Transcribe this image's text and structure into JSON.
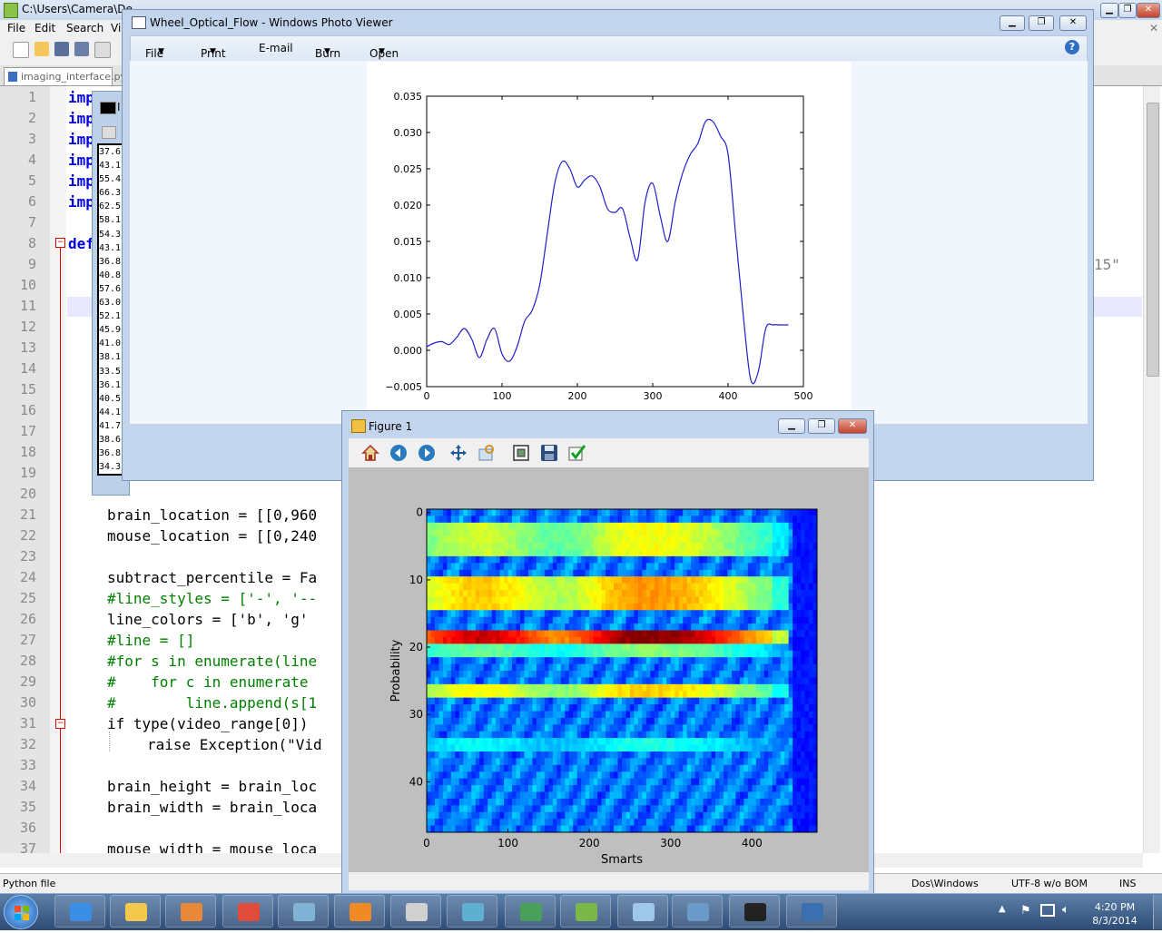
{
  "notepad": {
    "title": "C:\\Users\\Camera\\De",
    "menu": [
      "File",
      "Edit",
      "Search",
      "Vi"
    ],
    "tab_label": "imaging_interface.py",
    "status_filetype": "Python file",
    "status_eol": "Dos\\Windows",
    "status_encoding": "UTF-8 w/o BOM",
    "status_mode": "INS",
    "right_fragment": "15\"",
    "line_numbers": [
      "1",
      "2",
      "3",
      "4",
      "5",
      "6",
      "7",
      "8",
      "9",
      "10",
      "11",
      "12",
      "13",
      "14",
      "15",
      "16",
      "17",
      "18",
      "19",
      "20",
      "21",
      "22",
      "23",
      "24",
      "25",
      "26",
      "27",
      "28",
      "29",
      "30",
      "31",
      "32",
      "33",
      "34",
      "35",
      "36",
      "37"
    ],
    "code_first": [
      "imp",
      "imp",
      "imp",
      "imp",
      "imp",
      "imp",
      "",
      "def"
    ],
    "code_l21": "brain_location = [[0,960",
    "code_l22": "mouse_location = [[0,240",
    "code_l24": "subtract_percentile = Fa",
    "code_l25": "#line_styles = ['-', '--",
    "code_l26": "line_colors = ['b', 'g'",
    "code_l27": "#line = []",
    "code_l28": "#for s in enumerate(line",
    "code_l29": "#    for c in enumerate",
    "code_l30": "#        line.append(s[1",
    "code_l31": "if type(video_range[0])",
    "code_l32": "raise Exception(\"Vid",
    "code_l34": "brain_height = brain_loc",
    "code_l35": "brain_width = brain_loca",
    "code_l37": "mouse_width = mouse_loca"
  },
  "cmd": {
    "title_fragment": "I",
    "lines": [
      "37.6",
      "43.1",
      "55.4",
      "66.3",
      "62.5",
      "58.1",
      "54.3",
      "43.1",
      "36.8",
      "40.8",
      "57.6",
      "63.0",
      "52.1",
      "45.9",
      "41.0",
      "38.1",
      "33.5",
      "36.1",
      "40.5",
      "44.1",
      "41.7",
      "38.6",
      "36.8",
      "34.3"
    ]
  },
  "photo_viewer": {
    "title": "Wheel_Optical_Flow - Windows Photo Viewer",
    "menu": [
      "File",
      "Print",
      "E-mail",
      "Burn",
      "Open"
    ],
    "help_icon": "help-icon"
  },
  "figure": {
    "title": "Figure 1",
    "toolbar_icons": [
      "home-icon",
      "back-icon",
      "forward-icon",
      "pan-icon",
      "zoom-icon",
      "subplots-icon",
      "save-icon",
      "check-icon"
    ]
  },
  "chart_data": [
    {
      "type": "line",
      "title": "",
      "xlabel": "",
      "ylabel": "",
      "xlim": [
        0,
        500
      ],
      "ylim": [
        -0.005,
        0.035
      ],
      "x_ticks": [
        "0",
        "100",
        "200",
        "300",
        "400",
        "500"
      ],
      "y_ticks": [
        "−0.005",
        "0.000",
        "0.005",
        "0.010",
        "0.015",
        "0.020",
        "0.025",
        "0.030",
        "0.035"
      ],
      "color": "#1f1fcc",
      "x": [
        0,
        10,
        20,
        30,
        40,
        50,
        60,
        70,
        80,
        90,
        100,
        110,
        120,
        130,
        140,
        150,
        160,
        170,
        180,
        190,
        200,
        210,
        220,
        230,
        240,
        250,
        260,
        270,
        280,
        290,
        300,
        310,
        320,
        330,
        340,
        350,
        360,
        370,
        380,
        390,
        400,
        410,
        420,
        430,
        440,
        450,
        460,
        470,
        480
      ],
      "y": [
        0.0005,
        0.001,
        0.0012,
        0.0008,
        0.0018,
        0.003,
        0.0015,
        -0.001,
        0.0015,
        0.003,
        -0.0005,
        -0.0015,
        0.0005,
        0.004,
        0.0055,
        0.009,
        0.016,
        0.023,
        0.026,
        0.025,
        0.0225,
        0.0235,
        0.024,
        0.0225,
        0.0195,
        0.019,
        0.0195,
        0.0155,
        0.0125,
        0.0205,
        0.023,
        0.0185,
        0.015,
        0.0205,
        0.0245,
        0.027,
        0.0285,
        0.0315,
        0.0315,
        0.0295,
        0.027,
        0.016,
        0.005,
        -0.004,
        -0.003,
        0.003,
        0.0035,
        0.0035,
        0.0035
      ]
    },
    {
      "type": "heatmap",
      "title": "",
      "xlabel": "Smarts",
      "ylabel": "Probability",
      "xlim": [
        0,
        480
      ],
      "ylim": [
        48,
        0
      ],
      "x_ticks": [
        "0",
        "100",
        "200",
        "300",
        "400"
      ],
      "y_ticks": [
        "0",
        "10",
        "20",
        "30",
        "40"
      ],
      "colormap": "jet",
      "bands": [
        {
          "row_from": 2,
          "row_to": 6,
          "intensity": 0.55
        },
        {
          "row_from": 10,
          "row_to": 14,
          "intensity": 0.65
        },
        {
          "row_from": 18.5,
          "row_to": 19.5,
          "intensity": 0.9
        },
        {
          "row_from": 20,
          "row_to": 21,
          "intensity": 0.45
        },
        {
          "row_from": 26.5,
          "row_to": 27.5,
          "intensity": 0.6
        },
        {
          "row_from": 34.5,
          "row_to": 35.5,
          "intensity": 0.35
        }
      ]
    }
  ],
  "taskbar": {
    "apps": [
      "ie-icon",
      "explorer-icon",
      "media-player-icon",
      "chrome-icon",
      "notepad-icon",
      "vlc-icon",
      "camera-icon",
      "paint-icon",
      "tool-icon",
      "notepadpp-icon",
      "writer-icon",
      "photo-viewer-icon",
      "cmd-icon",
      "python-icon"
    ],
    "time": "4:20 PM",
    "date": "8/3/2014"
  }
}
